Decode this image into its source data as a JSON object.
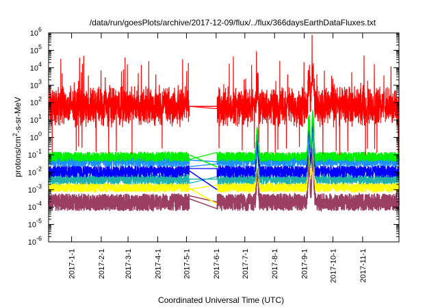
{
  "chart_data": {
    "type": "line",
    "title": "/data/run/goesPlots/archive/2017-12-09/flux/../flux/366daysEarthDataFluxes.txt",
    "xlabel": "Coordinated Universal Time (UTC)",
    "ylabel": "protons/cm²-s-sr-MeV",
    "yscale": "log",
    "ylim": [
      1e-06,
      1000000.0
    ],
    "xlim": [
      "2016-12-08",
      "2017-12-09"
    ],
    "grid": false,
    "legend": "none",
    "y_ticks": [
      {
        "value": 1e-06,
        "base": "10",
        "exp": "-6"
      },
      {
        "value": 1e-05,
        "base": "10",
        "exp": "-5"
      },
      {
        "value": 0.0001,
        "base": "10",
        "exp": "-4"
      },
      {
        "value": 0.001,
        "base": "10",
        "exp": "-3"
      },
      {
        "value": 0.01,
        "base": "10",
        "exp": "-2"
      },
      {
        "value": 0.1,
        "base": "10",
        "exp": "-1"
      },
      {
        "value": 1.0,
        "base": "10",
        "exp": "0"
      },
      {
        "value": 10.0,
        "base": "10",
        "exp": "1"
      },
      {
        "value": 100.0,
        "base": "10",
        "exp": "2"
      },
      {
        "value": 1000.0,
        "base": "10",
        "exp": "3"
      },
      {
        "value": 10000.0,
        "base": "10",
        "exp": "4"
      },
      {
        "value": 100000.0,
        "base": "10",
        "exp": "5"
      },
      {
        "value": 1000000.0,
        "base": "10",
        "exp": "6"
      }
    ],
    "x_ticks": [
      "2017-1-1",
      "2017-2-1",
      "2017-3-1",
      "2017-4-1",
      "2017-5-1",
      "2017-6-1",
      "2017-7-1",
      "2017-8-1",
      "2017-9-1",
      "2017-10-1",
      "2017-11-1"
    ],
    "gap": [
      "2017-05-04",
      "2017-06-02"
    ],
    "events": [
      {
        "date": "2017-07-14",
        "peak_factor": 40
      },
      {
        "date": "2017-09-06",
        "peak_factor": 200
      },
      {
        "date": "2017-09-10",
        "peak_factor": 400
      }
    ],
    "series": [
      {
        "color": "#ff0000",
        "baseline_low": 0.3,
        "baseline_high": 2000,
        "median": 60,
        "spikes_to": 50000,
        "after_gap": 60
      },
      {
        "color": "#00ee00",
        "baseline_low": 0.04,
        "baseline_high": 0.15,
        "median": 0.1,
        "after_gap": 0.02
      },
      {
        "color": "#1e90ff",
        "baseline_low": 0.02,
        "baseline_high": 0.1,
        "median": 0.05,
        "after_gap": 0.04
      },
      {
        "color": "#0000ff",
        "baseline_low": 0.005,
        "baseline_high": 0.025,
        "median": 0.012,
        "after_gap": 0.001
      },
      {
        "color": "#20b2aa",
        "baseline_low": 0.002,
        "baseline_high": 0.008,
        "median": 0.004,
        "after_gap": 0.004
      },
      {
        "color": "#ffff00",
        "baseline_low": 0.0007,
        "baseline_high": 0.0025,
        "median": 0.0012,
        "after_gap": 0.00015
      },
      {
        "color": "#9b3f62",
        "baseline_low": 6e-05,
        "baseline_high": 0.0006,
        "median": 0.0003,
        "after_gap": 8e-05
      }
    ]
  }
}
